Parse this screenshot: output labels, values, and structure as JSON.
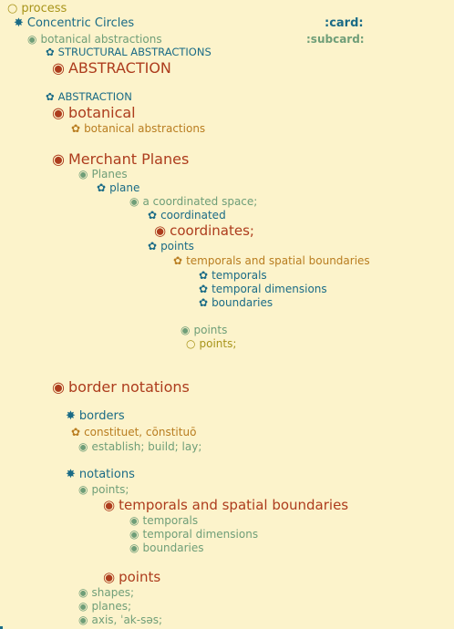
{
  "bullets": {
    "open_circle": "○",
    "asterisk": "✸",
    "flower": "✿",
    "dot_circle": "◉"
  },
  "labels": {
    "card": ":card:",
    "subcard": ":subcard:"
  },
  "lines": [
    {
      "text": "process"
    },
    {
      "text": "Concentric Circles"
    },
    {
      "text": "botanical abstractions"
    },
    {
      "text": "STRUCTURAL ABSTRACTIONS"
    },
    {
      "text": "ABSTRACTION"
    },
    {
      "text": "ABSTRACTION"
    },
    {
      "text": "botanical"
    },
    {
      "text": "botanical abstractions"
    },
    {
      "text": "Merchant Planes"
    },
    {
      "text": "Planes"
    },
    {
      "text": "plane"
    },
    {
      "text": "a coordinated space;"
    },
    {
      "text": "coordinated"
    },
    {
      "text": "coordinates;"
    },
    {
      "text": "points"
    },
    {
      "text": "temporals and spatial boundaries"
    },
    {
      "text": "temporals"
    },
    {
      "text": "temporal dimensions"
    },
    {
      "text": "boundaries"
    },
    {
      "text": "points"
    },
    {
      "text": "points;"
    },
    {
      "text": "border notations"
    },
    {
      "text": "borders"
    },
    {
      "text": "constituet, cōnstituō"
    },
    {
      "text": "establish; build; lay;"
    },
    {
      "text": "notations"
    },
    {
      "text": "points;"
    },
    {
      "text": "temporals and spatial boundaries"
    },
    {
      "text": "temporals"
    },
    {
      "text": "temporal dimensions"
    },
    {
      "text": "boundaries"
    },
    {
      "text": "points"
    },
    {
      "text": "shapes;"
    },
    {
      "text": "planes;"
    },
    {
      "text": "axis, ˈak-səs;"
    }
  ]
}
